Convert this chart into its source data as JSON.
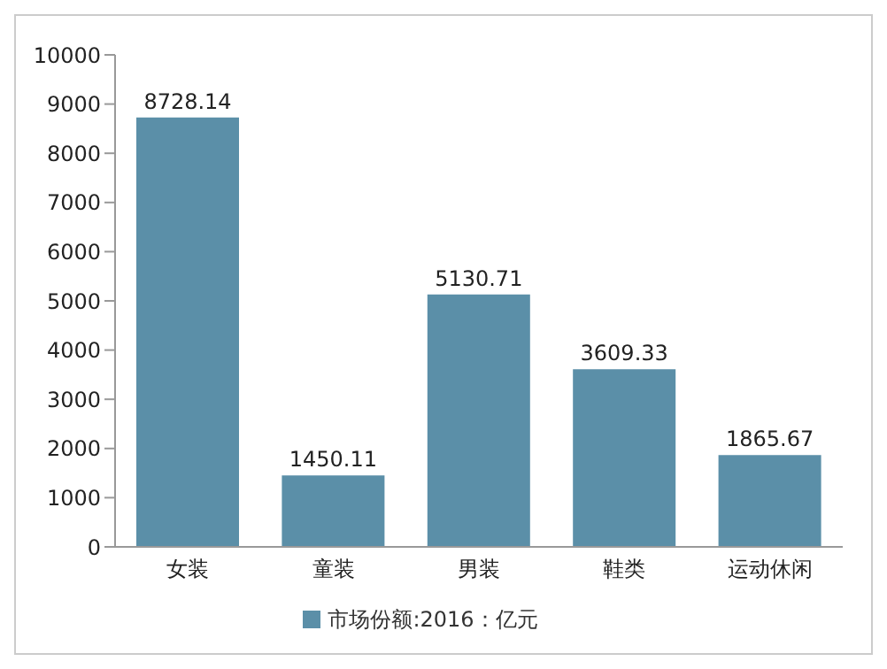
{
  "chart_data": {
    "type": "bar",
    "categories": [
      "女装",
      "童装",
      "男装",
      "鞋类",
      "运动休闲"
    ],
    "series": [
      {
        "name": "市场份额:2016：亿元",
        "color": "#5b8fa8",
        "values": [
          8728.14,
          1450.11,
          5130.71,
          3609.33,
          1865.67
        ]
      }
    ],
    "ylim": [
      0,
      10000
    ],
    "yticks": [
      0,
      1000,
      2000,
      3000,
      4000,
      5000,
      6000,
      7000,
      8000,
      9000,
      10000
    ],
    "grid": false,
    "legend": "bottom",
    "data_labels": true
  }
}
